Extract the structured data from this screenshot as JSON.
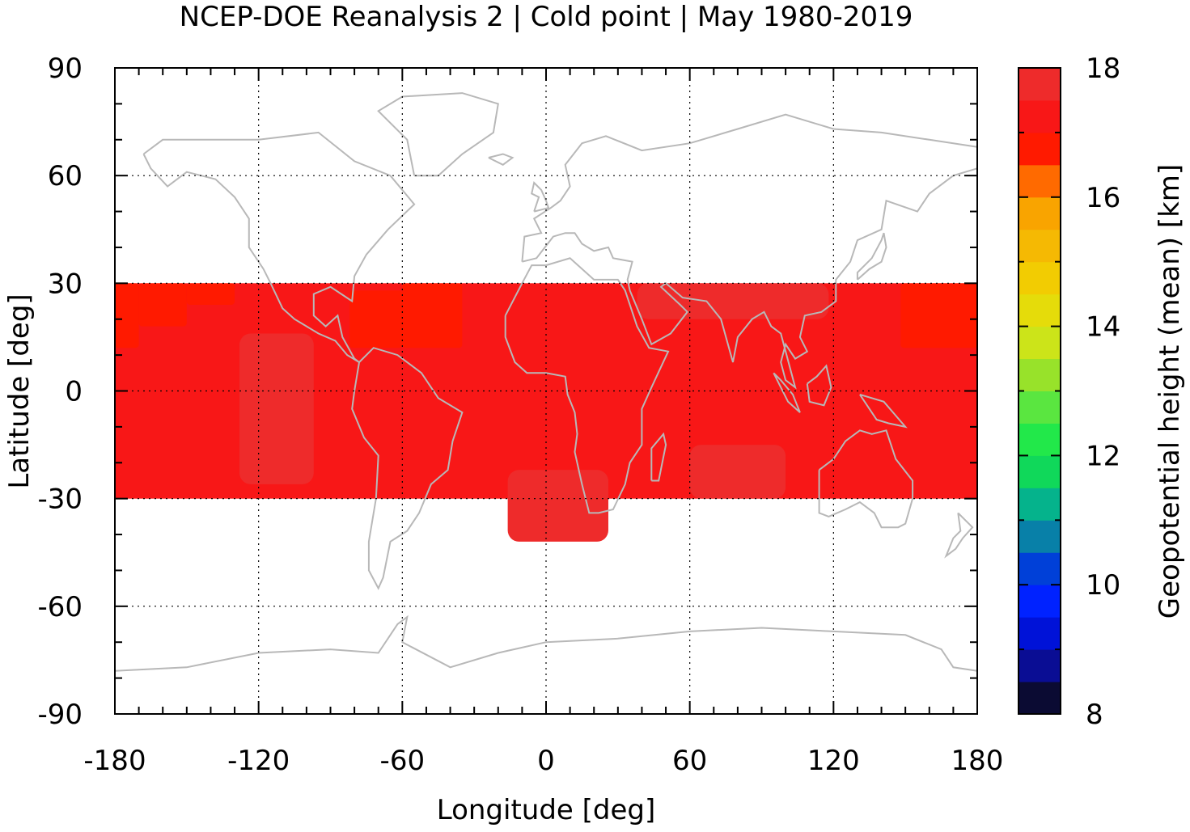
{
  "title": "NCEP-DOE Reanalysis 2 | Cold point | May 1980-2019",
  "xlabel": "Longitude [deg]",
  "ylabel": "Latitude [deg]",
  "colorbar_label": "Geopotential height (mean) [km]",
  "x_ticks": [
    "-180",
    "-120",
    "-60",
    "0",
    "60",
    "120",
    "180"
  ],
  "y_ticks": [
    "90",
    "60",
    "30",
    "0",
    "-30",
    "-60",
    "-90"
  ],
  "colorbar_ticks": [
    "18",
    "16",
    "14",
    "12",
    "10",
    "8"
  ],
  "chart_data": {
    "type": "heatmap",
    "title": "NCEP-DOE Reanalysis 2 | Cold point | May 1980-2019",
    "xlabel": "Longitude [deg]",
    "ylabel": "Latitude [deg]",
    "xlim": [
      -180,
      180
    ],
    "ylim": [
      -90,
      90
    ],
    "grid": true,
    "data_extent_lat": [
      -30,
      30
    ],
    "background_value_km": 17.25,
    "regions": [
      {
        "name": "",
        "value_km": 16.75,
        "lon_range": [
          -180,
          -170
        ],
        "lat_range": [
          12,
          30
        ]
      },
      {
        "name": "",
        "value_km": 16.75,
        "lon_range": [
          -170,
          -150
        ],
        "lat_range": [
          18,
          30
        ]
      },
      {
        "name": "",
        "value_km": 16.75,
        "lon_range": [
          -150,
          -130
        ],
        "lat_range": [
          24,
          30
        ]
      },
      {
        "name": "",
        "value_km": 16.75,
        "lon_range": [
          -82,
          -60
        ],
        "lat_range": [
          12,
          28
        ]
      },
      {
        "name": "",
        "value_km": 16.75,
        "lon_range": [
          -60,
          -35
        ],
        "lat_range": [
          12,
          30
        ]
      },
      {
        "name": "",
        "value_km": 16.75,
        "lon_range": [
          148,
          180
        ],
        "lat_range": [
          12,
          30
        ]
      },
      {
        "name": "",
        "value_km": 17.75,
        "lon_range": [
          -128,
          -97
        ],
        "lat_range": [
          -26,
          16
        ]
      },
      {
        "name": "",
        "value_km": 17.75,
        "lon_range": [
          -16,
          26
        ],
        "lat_range": [
          -42,
          -22
        ]
      },
      {
        "name": "",
        "value_km": 17.75,
        "lon_range": [
          60,
          100
        ],
        "lat_range": [
          -30,
          -15
        ]
      },
      {
        "name": "",
        "value_km": 17.75,
        "lon_range": [
          38,
          118
        ],
        "lat_range": [
          20,
          30
        ]
      }
    ],
    "colorbar": {
      "range_km": [
        8,
        18
      ],
      "step_km": 0.5,
      "colors_bottom_to_top": [
        "#0b0b33",
        "#0a0d94",
        "#0012d8",
        "#0022ff",
        "#0040d8",
        "#0880a8",
        "#05b38c",
        "#10d85a",
        "#22e84a",
        "#5ae640",
        "#98e22a",
        "#cce419",
        "#e5dc0a",
        "#f2cc02",
        "#f5b903",
        "#f9a400",
        "#ff6a00",
        "#ff1a00",
        "#f81717",
        "#ee2b2b",
        "#f47a7a",
        "#ffc9c9"
      ]
    },
    "coastline_color": "#b8b8b8"
  }
}
